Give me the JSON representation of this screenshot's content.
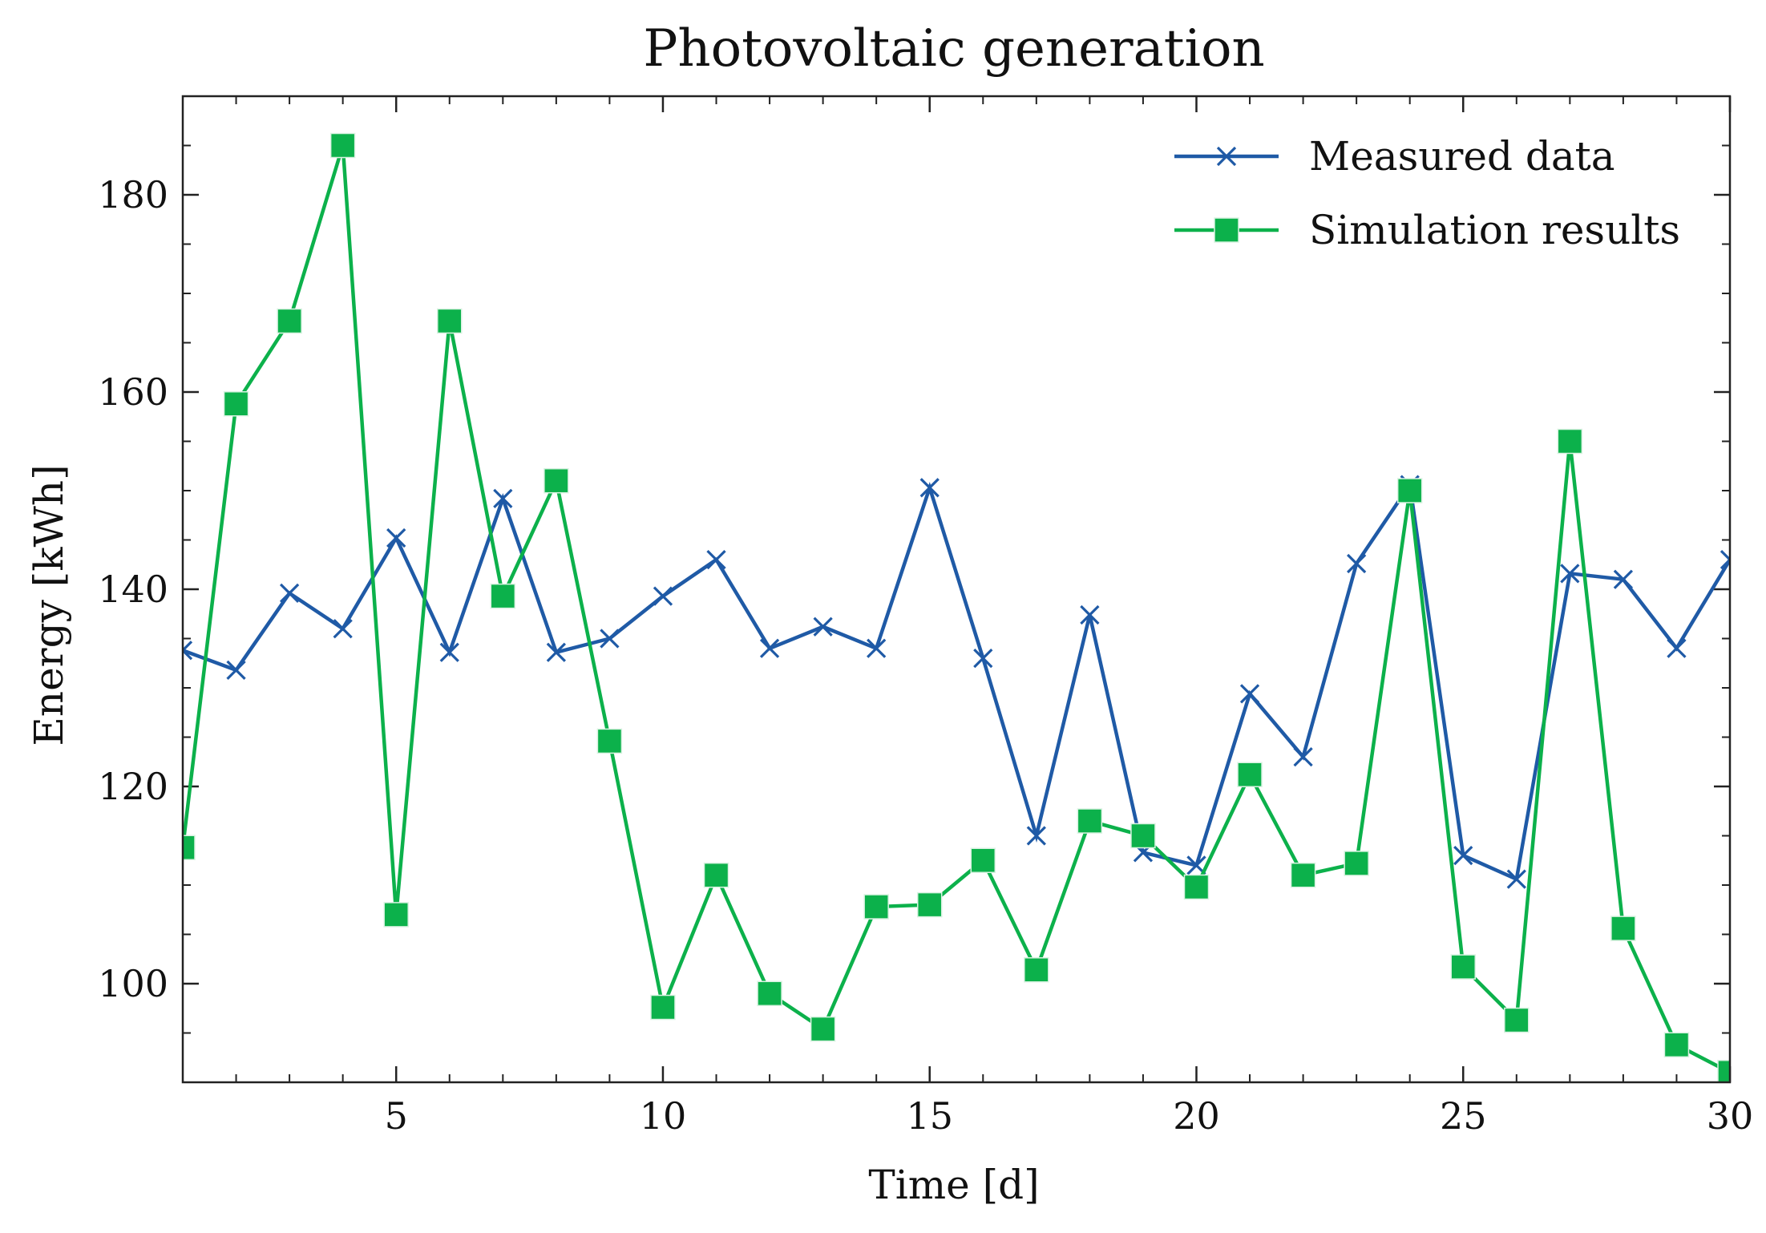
{
  "chart_data": {
    "type": "line",
    "title": "Photovoltaic generation",
    "xlabel": "Time [d]",
    "ylabel": "Energy [kWh]",
    "xlim": [
      1,
      30
    ],
    "ylim": [
      90,
      190
    ],
    "xticks": [
      5,
      10,
      15,
      20,
      25,
      30
    ],
    "xtick_labels": [
      "5",
      "10",
      "15",
      "20",
      "25",
      "30"
    ],
    "yticks": [
      100,
      120,
      140,
      160,
      180
    ],
    "ytick_labels": [
      "100",
      "120",
      "140",
      "160",
      "180"
    ],
    "grid": false,
    "legend_position": "top-right",
    "x": [
      1,
      2,
      3,
      4,
      5,
      6,
      7,
      8,
      9,
      10,
      11,
      12,
      13,
      14,
      15,
      16,
      17,
      18,
      19,
      20,
      21,
      22,
      23,
      24,
      25,
      26,
      27,
      28,
      29,
      30
    ],
    "series": [
      {
        "name": "Measured data",
        "color": "#1f5aa6",
        "marker": "x",
        "values": [
          133.8,
          131.8,
          139.6,
          136.0,
          145.2,
          133.6,
          149.2,
          133.6,
          135.0,
          139.3,
          143.0,
          134.0,
          136.2,
          134.0,
          150.3,
          133.0,
          115.0,
          137.4,
          113.3,
          112.0,
          129.4,
          123.0,
          142.6,
          150.6,
          113.0,
          110.6,
          141.6,
          141.0,
          134.0,
          143.0
        ]
      },
      {
        "name": "Simulation results",
        "color": "#0cb14b",
        "marker": "square",
        "values": [
          113.8,
          158.8,
          167.2,
          185.0,
          107.0,
          167.2,
          139.3,
          151.0,
          124.6,
          97.6,
          111.0,
          99.0,
          95.4,
          107.8,
          108.0,
          112.5,
          101.4,
          116.5,
          115.0,
          109.8,
          121.2,
          111.0,
          112.2,
          150.0,
          101.7,
          96.3,
          155.0,
          105.6,
          93.8,
          91.0
        ]
      }
    ]
  }
}
